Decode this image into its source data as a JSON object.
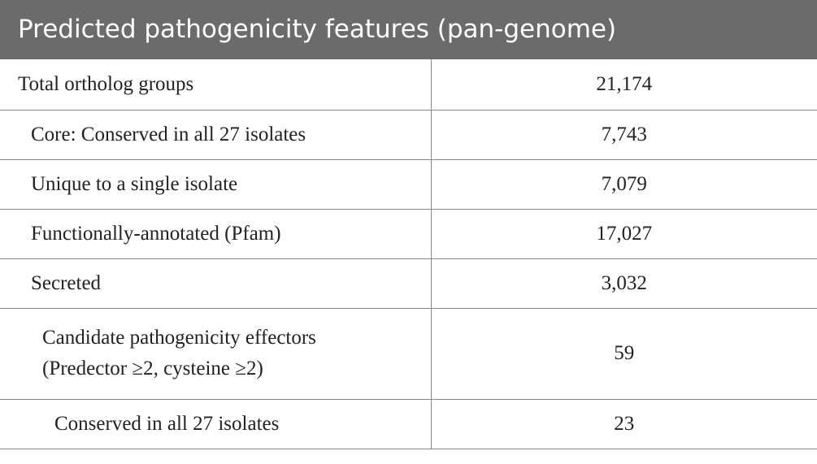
{
  "table": {
    "title": "Predicted pathogenicity features (pan-genome)",
    "rows": [
      {
        "label": "Total ortholog groups",
        "value": "21,174"
      },
      {
        "label": "Core: Conserved in all 27 isolates",
        "value": "7,743"
      },
      {
        "label": "Unique to a single isolate",
        "value": "7,079"
      },
      {
        "label": "Functionally-annotated (Pfam)",
        "value": "17,027"
      },
      {
        "label": "Secreted",
        "value": "3,032"
      },
      {
        "label_line1": "Candidate pathogenicity effectors",
        "label_line2": "(Predector ≥2, cysteine ≥2)",
        "value": "59"
      },
      {
        "label": "Conserved in all 27 isolates",
        "value": "23"
      }
    ]
  },
  "colors": {
    "header_bg": "#6b6b6b",
    "header_text": "#ffffff",
    "border": "#8a8a8a",
    "body_text": "#222222"
  }
}
